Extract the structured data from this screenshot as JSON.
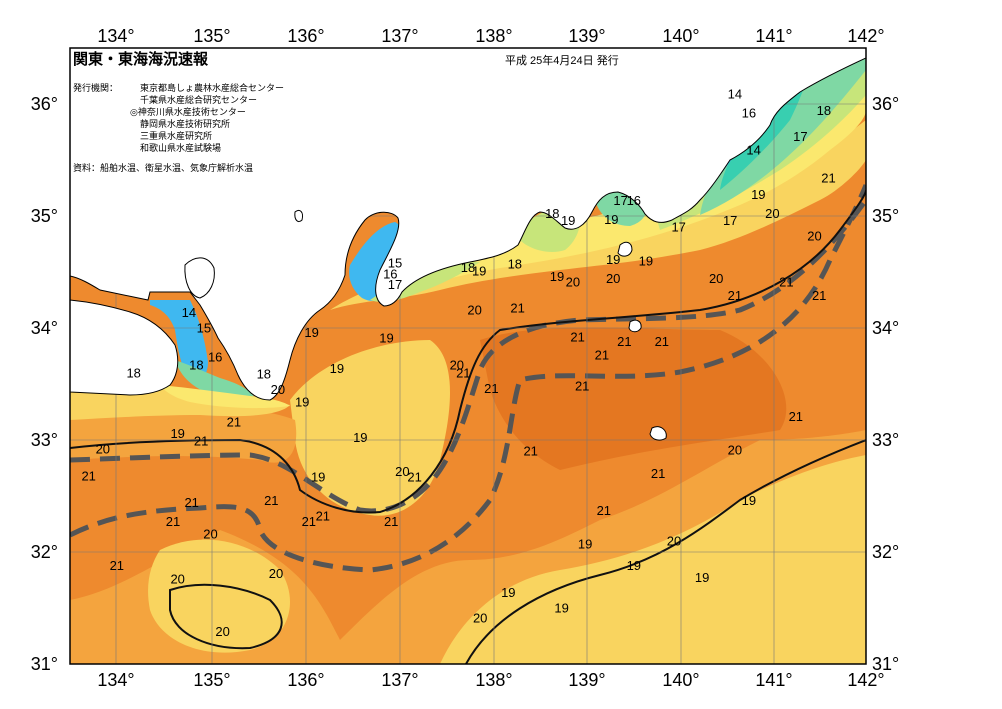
{
  "header": {
    "title": "関東・東海海況速報",
    "issue_date": "平成 25年4月24日 発行"
  },
  "issuers": {
    "label": "発行機関：",
    "list": [
      "東京都島しょ農林水産総合センター",
      "千葉県水産総合研究センター",
      "◎神奈川県水産技術センター",
      "静岡県水産技術研究所",
      "三重県水産研究所",
      "和歌山県水産試験場"
    ]
  },
  "data_source": "資料：船舶水温、衛星水温、気象庁解析水温",
  "axes": {
    "longitude_ticks": [
      "134°",
      "135°",
      "136°",
      "137°",
      "138°",
      "139°",
      "140°",
      "141°",
      "142°"
    ],
    "latitude_ticks": [
      "36°",
      "35°",
      "34°",
      "33°",
      "32°",
      "31°"
    ]
  },
  "map_data": {
    "lon_range": [
      133.5,
      142.0
    ],
    "lat_range": [
      31.0,
      36.5
    ],
    "temperature_labels": [
      {
        "v": "14",
        "lon": 140.6,
        "lat": 36.05
      },
      {
        "v": "16",
        "lon": 140.75,
        "lat": 35.88
      },
      {
        "v": "18",
        "lon": 141.55,
        "lat": 35.9
      },
      {
        "v": "17",
        "lon": 141.3,
        "lat": 35.67
      },
      {
        "v": "14",
        "lon": 140.8,
        "lat": 35.55
      },
      {
        "v": "21",
        "lon": 141.6,
        "lat": 35.3
      },
      {
        "v": "19",
        "lon": 140.85,
        "lat": 35.15
      },
      {
        "v": "20",
        "lon": 141.0,
        "lat": 34.98
      },
      {
        "v": "17",
        "lon": 140.55,
        "lat": 34.92
      },
      {
        "v": "17",
        "lon": 140.0,
        "lat": 34.86
      },
      {
        "v": "20",
        "lon": 141.45,
        "lat": 34.78
      },
      {
        "v": "17",
        "lon": 139.38,
        "lat": 35.1
      },
      {
        "v": "16",
        "lon": 139.52,
        "lat": 35.1
      },
      {
        "v": "19",
        "lon": 139.28,
        "lat": 34.93
      },
      {
        "v": "18",
        "lon": 138.65,
        "lat": 34.98
      },
      {
        "v": "19",
        "lon": 138.82,
        "lat": 34.92
      },
      {
        "v": "19",
        "lon": 139.3,
        "lat": 34.57
      },
      {
        "v": "19",
        "lon": 139.65,
        "lat": 34.56
      },
      {
        "v": "18",
        "lon": 138.25,
        "lat": 34.53
      },
      {
        "v": "18",
        "lon": 137.75,
        "lat": 34.5
      },
      {
        "v": "19",
        "lon": 137.87,
        "lat": 34.47
      },
      {
        "v": "15",
        "lon": 136.97,
        "lat": 34.54
      },
      {
        "v": "16",
        "lon": 136.92,
        "lat": 34.44
      },
      {
        "v": "17",
        "lon": 136.97,
        "lat": 34.35
      },
      {
        "v": "19",
        "lon": 138.7,
        "lat": 34.42
      },
      {
        "v": "20",
        "lon": 138.87,
        "lat": 34.37
      },
      {
        "v": "20",
        "lon": 139.3,
        "lat": 34.4
      },
      {
        "v": "20",
        "lon": 140.4,
        "lat": 34.4
      },
      {
        "v": "21",
        "lon": 140.6,
        "lat": 34.25
      },
      {
        "v": "21",
        "lon": 141.15,
        "lat": 34.37
      },
      {
        "v": "21",
        "lon": 141.5,
        "lat": 34.25
      },
      {
        "v": "20",
        "lon": 137.82,
        "lat": 34.12
      },
      {
        "v": "21",
        "lon": 138.28,
        "lat": 34.14
      },
      {
        "v": "19",
        "lon": 136.08,
        "lat": 33.92
      },
      {
        "v": "19",
        "lon": 136.88,
        "lat": 33.87
      },
      {
        "v": "21",
        "lon": 138.92,
        "lat": 33.88
      },
      {
        "v": "21",
        "lon": 139.42,
        "lat": 33.84
      },
      {
        "v": "21",
        "lon": 139.82,
        "lat": 33.84
      },
      {
        "v": "21",
        "lon": 139.18,
        "lat": 33.72
      },
      {
        "v": "14",
        "lon": 134.77,
        "lat": 34.1
      },
      {
        "v": "15",
        "lon": 134.93,
        "lat": 33.96
      },
      {
        "v": "16",
        "lon": 135.05,
        "lat": 33.7
      },
      {
        "v": "18",
        "lon": 134.85,
        "lat": 33.63
      },
      {
        "v": "18",
        "lon": 134.18,
        "lat": 33.56
      },
      {
        "v": "18",
        "lon": 135.57,
        "lat": 33.55
      },
      {
        "v": "20",
        "lon": 135.72,
        "lat": 33.41
      },
      {
        "v": "19",
        "lon": 136.35,
        "lat": 33.6
      },
      {
        "v": "20",
        "lon": 137.63,
        "lat": 33.63
      },
      {
        "v": "21",
        "lon": 137.7,
        "lat": 33.56
      },
      {
        "v": "21",
        "lon": 138.0,
        "lat": 33.42
      },
      {
        "v": "21",
        "lon": 138.97,
        "lat": 33.44
      },
      {
        "v": "19",
        "lon": 135.98,
        "lat": 33.3
      },
      {
        "v": "21",
        "lon": 135.25,
        "lat": 33.12
      },
      {
        "v": "19",
        "lon": 134.65,
        "lat": 33.02
      },
      {
        "v": "21",
        "lon": 134.9,
        "lat": 32.95
      },
      {
        "v": "21",
        "lon": 141.25,
        "lat": 33.17
      },
      {
        "v": "20",
        "lon": 133.85,
        "lat": 32.88
      },
      {
        "v": "19",
        "lon": 136.6,
        "lat": 32.98
      },
      {
        "v": "21",
        "lon": 138.42,
        "lat": 32.86
      },
      {
        "v": "20",
        "lon": 140.6,
        "lat": 32.87
      },
      {
        "v": "21",
        "lon": 133.7,
        "lat": 32.64
      },
      {
        "v": "20",
        "lon": 137.05,
        "lat": 32.68
      },
      {
        "v": "21",
        "lon": 137.18,
        "lat": 32.63
      },
      {
        "v": "19",
        "lon": 136.15,
        "lat": 32.63
      },
      {
        "v": "21",
        "lon": 139.78,
        "lat": 32.66
      },
      {
        "v": "21",
        "lon": 134.8,
        "lat": 32.4
      },
      {
        "v": "21",
        "lon": 135.65,
        "lat": 32.42
      },
      {
        "v": "21",
        "lon": 136.2,
        "lat": 32.28
      },
      {
        "v": "21",
        "lon": 136.05,
        "lat": 32.23
      },
      {
        "v": "21",
        "lon": 134.6,
        "lat": 32.23
      },
      {
        "v": "21",
        "lon": 136.93,
        "lat": 32.23
      },
      {
        "v": "21",
        "lon": 139.2,
        "lat": 32.33
      },
      {
        "v": "19",
        "lon": 140.75,
        "lat": 32.42
      },
      {
        "v": "20",
        "lon": 135.0,
        "lat": 32.12
      },
      {
        "v": "19",
        "lon": 139.0,
        "lat": 32.03
      },
      {
        "v": "20",
        "lon": 139.95,
        "lat": 32.06
      },
      {
        "v": "21",
        "lon": 134.0,
        "lat": 31.84
      },
      {
        "v": "19",
        "lon": 139.52,
        "lat": 31.84
      },
      {
        "v": "20",
        "lon": 135.7,
        "lat": 31.77
      },
      {
        "v": "20",
        "lon": 134.65,
        "lat": 31.72
      },
      {
        "v": "19",
        "lon": 140.25,
        "lat": 31.73
      },
      {
        "v": "19",
        "lon": 138.18,
        "lat": 31.6
      },
      {
        "v": "19",
        "lon": 138.75,
        "lat": 31.46
      },
      {
        "v": "20",
        "lon": 137.88,
        "lat": 31.37
      },
      {
        "v": "20",
        "lon": 135.13,
        "lat": 31.25
      }
    ]
  },
  "colors": {
    "ocean_21": "#EE8A2E",
    "ocean_21_dark": "#E0701E",
    "ocean_20": "#F4A43E",
    "ocean_19": "#F9D45F",
    "ocean_18": "#FBE86E",
    "ocean_17": "#C7E57A",
    "ocean_16": "#7FD8A4",
    "ocean_15": "#38CFB0",
    "ocean_14": "#3CCDEA",
    "cold": "#3FB8F0",
    "land": "#FFFFFF",
    "kuroshio": "#555555"
  }
}
